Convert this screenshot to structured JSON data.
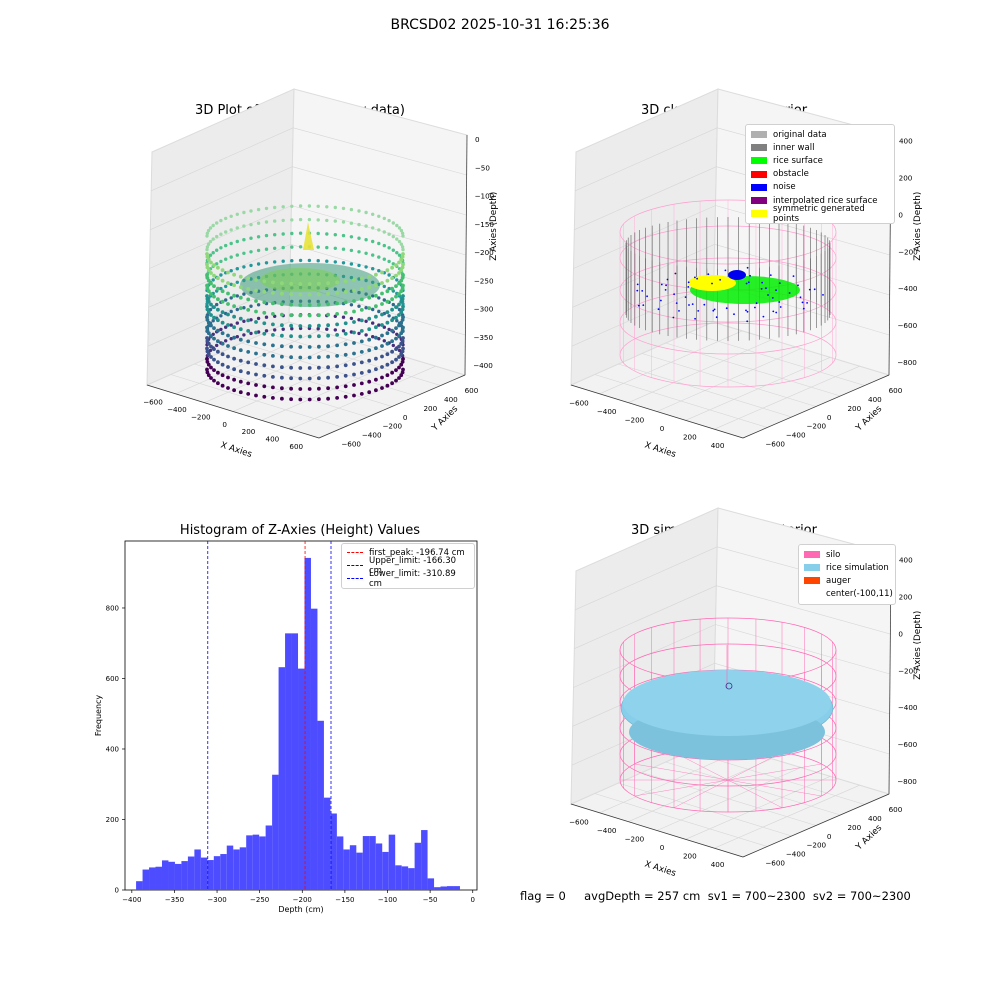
{
  "suptitle": "BRCSD02 2025-10-31 16:25:36",
  "panel_titles": {
    "raw": "3D Plot of Silo Interior(row data)",
    "classify": "3D classify of Silo Interior",
    "hist": "Histogram of Z-Axies (Height) Values",
    "sim": "3D simulation of Silo Interior"
  },
  "axes3d": {
    "x_label": "X Axies",
    "y_label": "Y Axies",
    "z_label": "Z Axies (Depth)",
    "raw": {
      "x_ticks": [
        "−600",
        "−400",
        "−200",
        "0",
        "200",
        "400",
        "600"
      ],
      "y_ticks": [
        "−600",
        "−400",
        "−200",
        "0",
        "200",
        "400",
        "600"
      ],
      "z_ticks": [
        "0",
        "−50",
        "−100",
        "−150",
        "−200",
        "−250",
        "−300",
        "−350",
        "−400"
      ]
    },
    "classify": {
      "x_ticks": [
        "−600",
        "−400",
        "−200",
        "0",
        "200",
        "400"
      ],
      "y_ticks": [
        "−600",
        "−400",
        "−200",
        "0",
        "200",
        "400",
        "600"
      ],
      "z_ticks": [
        "400",
        "200",
        "0",
        "−200",
        "−400",
        "−600",
        "−800"
      ]
    },
    "sim": {
      "x_ticks": [
        "−600",
        "−400",
        "−200",
        "0",
        "200",
        "400"
      ],
      "y_ticks": [
        "−600",
        "−400",
        "−200",
        "0",
        "200",
        "400",
        "600"
      ],
      "z_ticks": [
        "400",
        "200",
        "0",
        "−200",
        "−400",
        "−600",
        "−800"
      ]
    }
  },
  "classify_legend": [
    {
      "label": "original data",
      "color": "#b0b0b0"
    },
    {
      "label": "inner wall",
      "color": "#808080"
    },
    {
      "label": "rice surface",
      "color": "#00ff00"
    },
    {
      "label": "obstacle",
      "color": "#ff0000"
    },
    {
      "label": "noise",
      "color": "#0000ff"
    },
    {
      "label": "interpolated rice surface",
      "color": "#800080"
    },
    {
      "label": "symmetric generated points",
      "color": "#ffff00"
    }
  ],
  "sim_legend": [
    {
      "label": "silo",
      "color": "#ff69b4"
    },
    {
      "label": "rice simulation",
      "color": "#87ceeb"
    },
    {
      "label": "auger",
      "color": "#ff4500"
    },
    {
      "label": "center(-100,11)",
      "color": ""
    }
  ],
  "chart_data": {
    "type": "bar",
    "title": "Histogram of Z-Axies (Height) Values",
    "xlabel": "Depth (cm)",
    "ylabel": "Frequency",
    "xlim": [
      -408,
      5
    ],
    "ylim": [
      0,
      990
    ],
    "x_ticks": [
      -400,
      -350,
      -300,
      -250,
      -200,
      -150,
      -100,
      -50,
      0
    ],
    "y_ticks": [
      0,
      200,
      400,
      600,
      800
    ],
    "bin_width": 7.6,
    "bin_left_edges": [
      -395,
      -387.4,
      -379.8,
      -372.2,
      -364.6,
      -357,
      -349.4,
      -341.8,
      -334.2,
      -326.6,
      -319,
      -311.4,
      -303.8,
      -296.2,
      -288.6,
      -281,
      -273.4,
      -265.8,
      -258.2,
      -250.6,
      -243,
      -235.4,
      -227.8,
      -220.2,
      -212.6,
      -205,
      -197.4,
      -189.8,
      -182.2,
      -174.6,
      -167,
      -159.4,
      -151.8,
      -144.2,
      -136.6,
      -129,
      -121.4,
      -113.8,
      -106.2,
      -98.6,
      -91,
      -83.4,
      -75.8,
      -68.2,
      -60.6,
      -53,
      -45.4,
      -37.8,
      -30.2,
      -22.6
    ],
    "values": [
      25,
      58,
      64,
      66,
      84,
      80,
      74,
      82,
      95,
      115,
      92,
      85,
      96,
      102,
      126,
      115,
      121,
      155,
      157,
      152,
      183,
      327,
      632,
      728,
      728,
      628,
      942,
      798,
      480,
      262,
      217,
      152,
      115,
      127,
      106,
      153,
      153,
      132,
      108,
      157,
      70,
      67,
      62,
      134,
      170,
      33,
      8,
      10,
      11,
      11
    ],
    "lines": [
      {
        "label": "first_peak: -196.74 cm",
        "x": -196.74,
        "color": "#ff0000"
      },
      {
        "label": "Upper_limit: -166.30 cm",
        "x": -166.3,
        "color": "#0000ff"
      },
      {
        "label": "Lower_limit: -310.89 cm",
        "x": -310.89,
        "color": "#0000ff"
      }
    ],
    "bar_color": "#4d4dff"
  },
  "footer": {
    "text": "flag = 0     avgDepth = 257 cm  sv1 = 700~2300  sv2 = 700~2300"
  }
}
